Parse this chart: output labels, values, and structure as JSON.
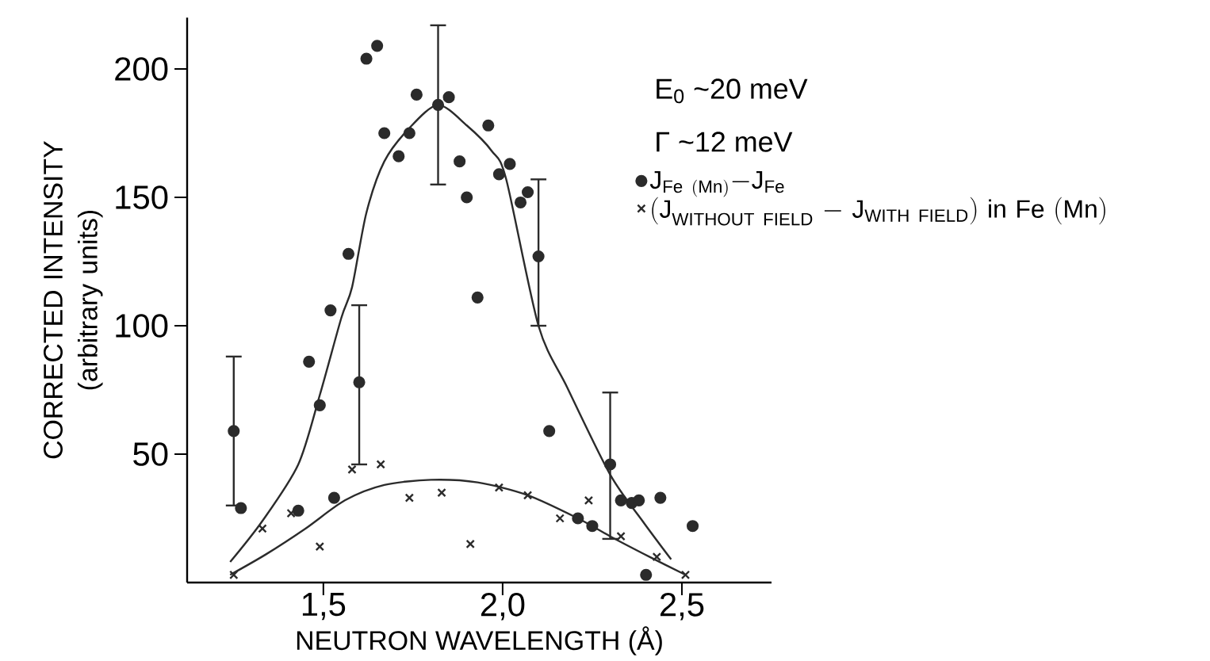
{
  "chart_data": {
    "type": "scatter",
    "xlabel": "NEUTRON WAVELENGTH (Å)",
    "ylabel": "CORRECTED INTENSITY (arbitrary units)",
    "xlim": [
      1.12,
      2.75
    ],
    "ylim": [
      0,
      220
    ],
    "xticks": [
      {
        "value": 1.5,
        "label": "1,5"
      },
      {
        "value": 2.0,
        "label": "2,0"
      },
      {
        "value": 2.5,
        "label": "2,5"
      }
    ],
    "yticks": [
      50,
      100,
      150,
      200
    ],
    "legend": "top right",
    "annotations": [
      "E$_{0}$ ~20 meV",
      "Γ ~12 meV"
    ],
    "series": [
      {
        "name": "\\mathrm{J}_{\\mathrm{Fe\\ (Mn)}}\\mathrm{-J}_{\\mathrm{Fe}}",
        "marker": "circle",
        "color": "#2b2b2b",
        "x": [
          1.25,
          1.27,
          1.43,
          1.46,
          1.49,
          1.52,
          1.53,
          1.57,
          1.6,
          1.62,
          1.65,
          1.67,
          1.71,
          1.74,
          1.76,
          1.82,
          1.85,
          1.88,
          1.9,
          1.93,
          1.96,
          1.99,
          2.02,
          2.05,
          2.07,
          2.1,
          2.13,
          2.21,
          2.25,
          2.3,
          2.33,
          2.36,
          2.38,
          2.4,
          2.44,
          2.53
        ],
        "values": [
          59,
          29,
          28,
          86,
          69,
          106,
          33,
          128,
          78,
          204,
          209,
          175,
          166,
          175,
          190,
          186,
          189,
          164,
          150,
          111,
          178,
          159,
          163,
          148,
          152,
          127,
          59,
          25,
          22,
          46,
          32,
          31,
          32,
          3,
          33,
          22
        ],
        "errors": [
          [
            30,
            88
          ],
          null,
          null,
          null,
          null,
          null,
          null,
          null,
          [
            46,
            108
          ],
          null,
          null,
          null,
          null,
          null,
          null,
          [
            155,
            217
          ],
          null,
          null,
          null,
          null,
          null,
          null,
          null,
          null,
          null,
          [
            100,
            157
          ],
          null,
          null,
          null,
          [
            17,
            74
          ],
          null,
          null,
          null,
          null,
          null,
          null
        ]
      },
      {
        "name": "\\mathrm{(J}_{\\mathrm{WITHOUT\\ FIELD}}\\mathrm{\\ -\\ J}_{\\mathrm{WITH\\ FIELD}}\\mathrm{)\\ in\\ Fe\\ (Mn)}",
        "marker": "cross",
        "color": "#2b2b2b",
        "x": [
          1.25,
          1.33,
          1.41,
          1.49,
          1.58,
          1.66,
          1.74,
          1.83,
          1.91,
          1.99,
          2.07,
          2.16,
          2.24,
          2.33,
          2.43,
          2.51
        ],
        "values": [
          3,
          21,
          27,
          14,
          44,
          46,
          33,
          35,
          15,
          37,
          34,
          25,
          32,
          18,
          10,
          3
        ]
      },
      {
        "type": "line",
        "marker": "none",
        "line_style": "solid",
        "color": "#2b2b2b",
        "x": [
          1.24,
          1.33,
          1.43,
          1.49,
          1.55,
          1.58,
          1.62,
          1.67,
          1.74,
          1.82,
          1.9,
          1.97,
          2.01,
          2.1,
          2.18,
          2.3,
          2.39,
          2.47
        ],
        "values": [
          8,
          24,
          46,
          73,
          103,
          115,
          144,
          164,
          177,
          186,
          178,
          168,
          157,
          100,
          76,
          42,
          24,
          9
        ]
      },
      {
        "type": "line",
        "marker": "none",
        "line_style": "solid",
        "color": "#2b2b2b",
        "x": [
          1.24,
          1.34,
          1.45,
          1.56,
          1.67,
          1.8,
          1.93,
          2.07,
          2.21,
          2.3,
          2.41,
          2.51
        ],
        "values": [
          3,
          11,
          21,
          32,
          38,
          40,
          39,
          34,
          25,
          18,
          10,
          3
        ]
      }
    ]
  }
}
